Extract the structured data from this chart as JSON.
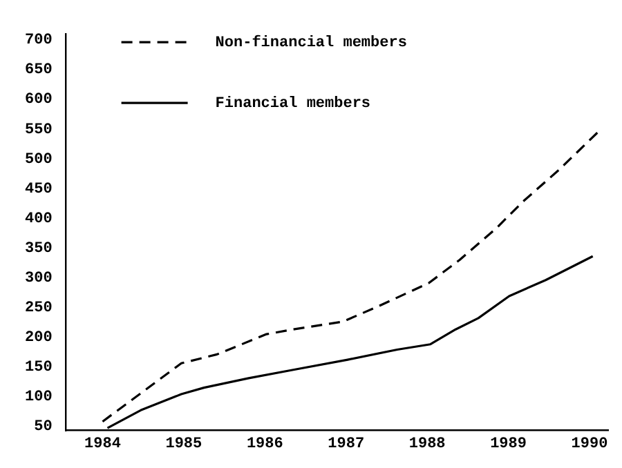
{
  "chart_data": {
    "type": "line",
    "legend": "top left",
    "grid": false,
    "marker": "none",
    "xlim": [
      1983.55,
      1990.23
    ],
    "xticks": [
      1984,
      1985,
      1986,
      1987,
      1988,
      1989,
      1990
    ],
    "ylim": [
      43,
      710
    ],
    "yticks": [
      50,
      100,
      150,
      200,
      250,
      300,
      350,
      400,
      450,
      500,
      550,
      600,
      650,
      700
    ],
    "series": [
      {
        "name": "Non-financial members",
        "color": "#000000",
        "line_style": "dashed",
        "x": [
          1984,
          1984.97,
          1985.41,
          1986.02,
          1986.35,
          1986.96,
          1987.4,
          1988.02,
          1988.4,
          1988.85,
          1989.18,
          1989.62,
          1990.12
        ],
        "values": [
          58,
          156,
          171,
          205,
          213,
          226,
          252,
          291,
          330,
          383,
          428,
          481,
          547
        ]
      },
      {
        "name": "Financial members",
        "color": "#000000",
        "line_style": "solid",
        "x": [
          1984.06,
          1984.47,
          1984.97,
          1985.25,
          1985.8,
          1986.35,
          1987.02,
          1987.63,
          1988.04,
          1988.35,
          1988.63,
          1989.01,
          1989.46,
          1990.04
        ],
        "values": [
          47,
          77,
          104,
          115,
          131,
          145,
          162,
          179,
          188,
          213,
          232,
          269,
          296,
          336
        ]
      }
    ]
  }
}
